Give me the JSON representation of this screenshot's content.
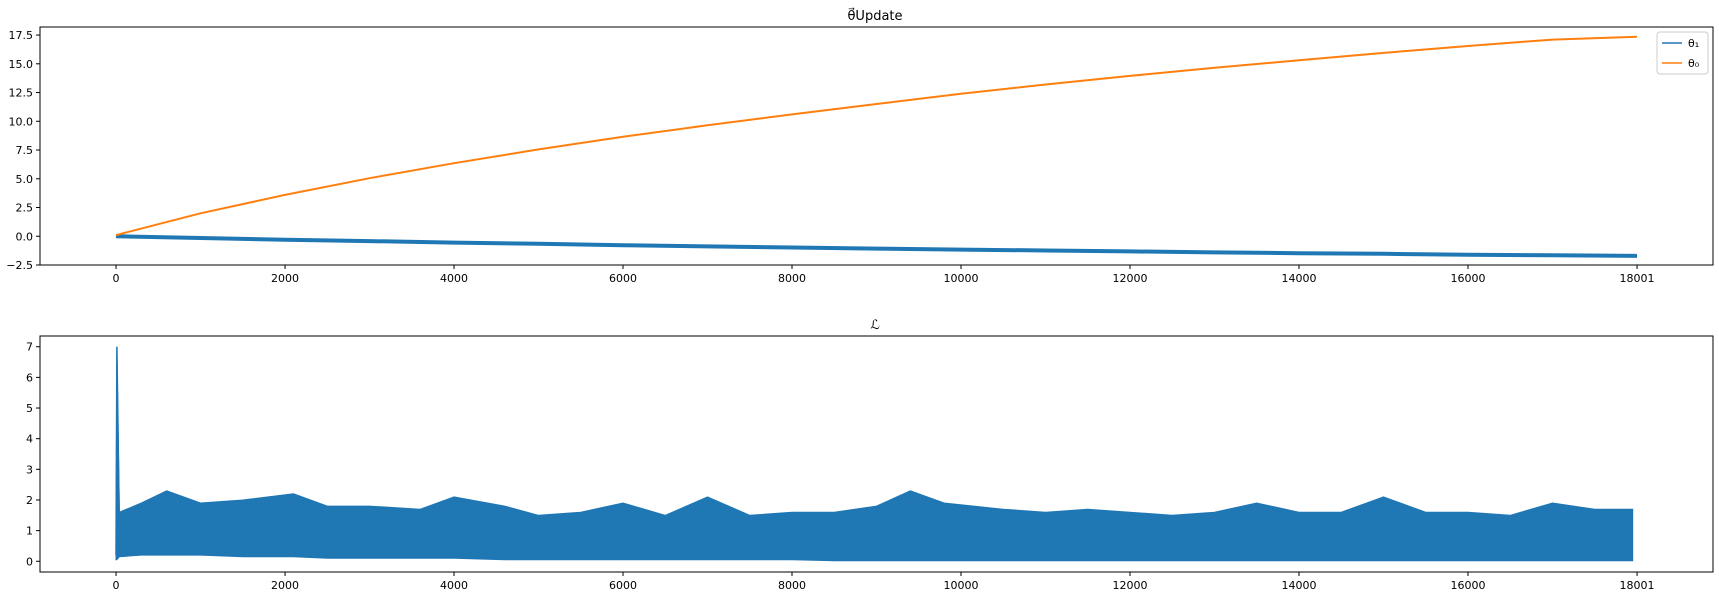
{
  "chart_data": [
    {
      "type": "line",
      "title": "θ⃗Update",
      "xlabel": "",
      "ylabel": "",
      "xlim": [
        -900,
        18900
      ],
      "ylim": [
        -2.5,
        18.2
      ],
      "xticks": [
        0,
        2000,
        4000,
        6000,
        8000,
        10000,
        12000,
        14000,
        16000,
        18001
      ],
      "xtick_labels": [
        "0",
        "2000",
        "4000",
        "6000",
        "8000",
        "10000",
        "12000",
        "14000",
        "16000",
        "18001"
      ],
      "yticks": [
        -2.5,
        0.0,
        2.5,
        5.0,
        7.5,
        10.0,
        12.5,
        15.0,
        17.5
      ],
      "ytick_labels": [
        "−2.5",
        "0.0",
        "2.5",
        "5.0",
        "7.5",
        "10.0",
        "12.5",
        "15.0",
        "17.5"
      ],
      "legend_position": "top-right",
      "grid": false,
      "series": [
        {
          "name": "θ₁",
          "color": "#1f77b4",
          "x": [
            0,
            1000,
            2000,
            3000,
            4000,
            5000,
            6000,
            7000,
            8000,
            9000,
            10000,
            11000,
            12000,
            13000,
            14000,
            15000,
            16000,
            17000,
            18001
          ],
          "values": [
            0.0,
            -0.15,
            -0.3,
            -0.42,
            -0.55,
            -0.66,
            -0.78,
            -0.88,
            -0.98,
            -1.07,
            -1.16,
            -1.24,
            -1.32,
            -1.4,
            -1.47,
            -1.53,
            -1.6,
            -1.66,
            -1.71
          ]
        },
        {
          "name": "θ₀",
          "color": "#ff7f0e",
          "x": [
            0,
            1000,
            2000,
            3000,
            4000,
            5000,
            6000,
            7000,
            8000,
            9000,
            10000,
            11000,
            12000,
            13000,
            14000,
            15000,
            16000,
            17000,
            18001
          ],
          "values": [
            0.1,
            2.0,
            3.6,
            5.05,
            6.35,
            7.55,
            8.65,
            9.65,
            10.6,
            11.5,
            12.4,
            13.2,
            13.95,
            14.65,
            15.3,
            15.95,
            16.55,
            17.1,
            17.35
          ]
        }
      ]
    },
    {
      "type": "line",
      "title": "ℒ",
      "xlabel": "",
      "ylabel": "",
      "xlim": [
        -900,
        18900
      ],
      "ylim": [
        -0.35,
        7.35
      ],
      "xticks": [
        0,
        2000,
        4000,
        6000,
        8000,
        10000,
        12000,
        14000,
        16000,
        18001
      ],
      "xtick_labels": [
        "0",
        "2000",
        "4000",
        "6000",
        "8000",
        "10000",
        "12000",
        "14000",
        "16000",
        "18001"
      ],
      "yticks": [
        0,
        1,
        2,
        3,
        4,
        5,
        6,
        7
      ],
      "ytick_labels": [
        "0",
        "1",
        "2",
        "3",
        "4",
        "5",
        "6",
        "7"
      ],
      "grid": false,
      "series": [
        {
          "color": "#1f77b4",
          "x": [
            0,
            10,
            40,
            300,
            600,
            1000,
            1500,
            2100,
            2500,
            3000,
            3600,
            4000,
            4600,
            5000,
            5500,
            6000,
            6500,
            7000,
            7500,
            8000,
            8500,
            9000,
            9400,
            9800,
            10500,
            11000,
            11500,
            12000,
            12500,
            13000,
            13500,
            14000,
            14500,
            15000,
            15500,
            16000,
            16500,
            17000,
            17500,
            17950
          ],
          "values": [
            0.2,
            7.0,
            0.9,
            1.05,
            1.1,
            0.95,
            1.0,
            1.05,
            0.85,
            0.8,
            0.75,
            0.8,
            0.85,
            0.7,
            0.7,
            0.75,
            0.65,
            0.6,
            0.7,
            0.7,
            0.55,
            0.7,
            0.75,
            0.45,
            0.5,
            0.55,
            0.5,
            0.55,
            0.5,
            0.45,
            0.55,
            0.55,
            0.5,
            0.5,
            0.55,
            0.5,
            0.55,
            0.5,
            0.55,
            0.6
          ],
          "upper": [
            0.5,
            7.0,
            1.6,
            1.9,
            2.3,
            1.9,
            2.0,
            2.2,
            1.8,
            1.8,
            1.7,
            2.1,
            1.8,
            1.5,
            1.6,
            1.9,
            1.5,
            2.1,
            1.5,
            1.6,
            1.6,
            1.8,
            2.3,
            1.9,
            1.7,
            1.6,
            1.7,
            1.6,
            1.5,
            1.6,
            1.9,
            1.6,
            1.6,
            2.1,
            1.6,
            1.6,
            1.5,
            1.9,
            1.7,
            1.7
          ],
          "lower": [
            0.05,
            0.05,
            0.15,
            0.2,
            0.2,
            0.2,
            0.15,
            0.15,
            0.1,
            0.1,
            0.1,
            0.1,
            0.05,
            0.05,
            0.05,
            0.05,
            0.05,
            0.05,
            0.05,
            0.05,
            0.02,
            0.02,
            0.02,
            0.02,
            0.02,
            0.02,
            0.02,
            0.02,
            0.02,
            0.02,
            0.02,
            0.02,
            0.02,
            0.02,
            0.02,
            0.02,
            0.02,
            0.02,
            0.02,
            0.02
          ]
        }
      ]
    }
  ]
}
